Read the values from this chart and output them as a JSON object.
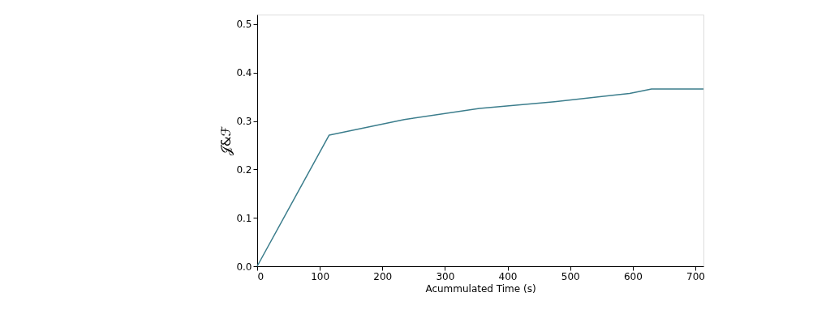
{
  "chart_data": {
    "type": "line",
    "xlabel": "Acummulated Time (s)",
    "ylabel": "𝒥&ℱ",
    "x": [
      0,
      115,
      235,
      355,
      475,
      595,
      630,
      713
    ],
    "series": [
      {
        "color": "#3b7d8c",
        "values": [
          0,
          0.271,
          0.303,
          0.326,
          0.34,
          0.357,
          0.366,
          0.366
        ]
      }
    ],
    "xlim": [
      0,
      713
    ],
    "xticks": [
      0,
      100,
      200,
      300,
      400,
      500,
      600,
      700
    ],
    "ylim": [
      0,
      0.52
    ],
    "yticks": [
      {
        "value": 0,
        "label": "0.0"
      },
      0.1,
      0.2,
      0.3,
      0.4,
      0.5
    ],
    "grid": false,
    "line_style": "solid",
    "marker": "none"
  }
}
